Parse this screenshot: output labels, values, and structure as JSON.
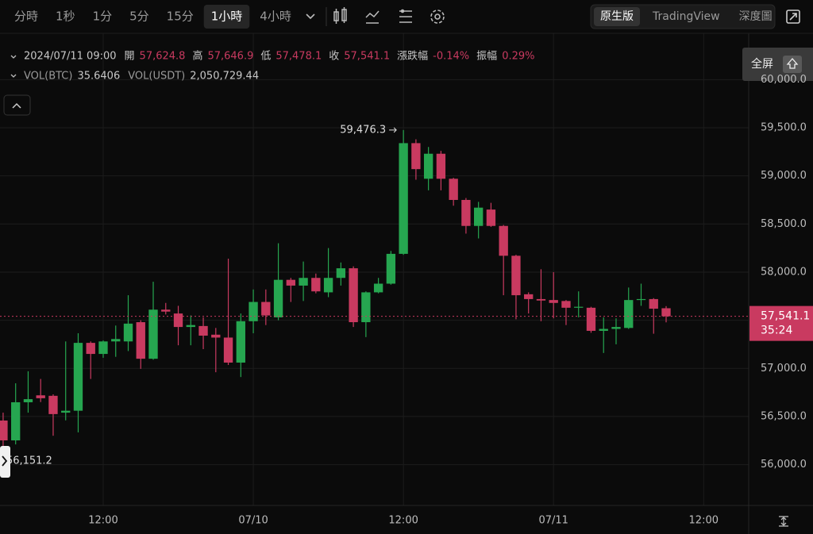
{
  "toolbar": {
    "intervals": [
      "分時",
      "1秒",
      "1分",
      "5分",
      "15分",
      "1小時",
      "4小時"
    ],
    "active": 5,
    "views": [
      "原生版",
      "TradingView",
      "深度圖"
    ],
    "active_view": 0,
    "fullscreen_tooltip": "全屏"
  },
  "legend": {
    "date": "2024/07/11 09:00",
    "items": [
      {
        "name": "開",
        "value": "57,624.8"
      },
      {
        "name": "高",
        "value": "57,646.9"
      },
      {
        "name": "低",
        "value": "57,478.1"
      },
      {
        "name": "收",
        "value": "57,541.1"
      },
      {
        "name": "漲跌幅",
        "value": "-0.14%"
      },
      {
        "name": "振幅",
        "value": "0.29%"
      }
    ],
    "volume": [
      {
        "name": "VOL(BTC)",
        "value": "35.6406"
      },
      {
        "name": "VOL(USDT)",
        "value": "2,050,729.44"
      }
    ]
  },
  "chart_data": {
    "type": "candlestick",
    "categories": [
      null,
      null,
      null,
      null,
      null,
      null,
      null,
      null,
      null,
      null,
      null,
      null,
      null,
      null,
      null,
      null,
      null,
      null,
      null,
      null,
      null,
      null,
      null,
      null,
      null,
      null,
      null,
      null,
      null,
      null,
      null,
      null,
      null,
      null,
      null,
      null,
      null,
      null,
      null,
      null,
      null,
      null,
      null,
      null,
      null,
      null,
      null,
      null,
      null,
      null,
      null,
      null,
      null,
      "2024/07/11 09:00"
    ],
    "open": [
      56458,
      56252,
      56648,
      56720,
      56715,
      56540,
      56560,
      57265,
      57150,
      57280,
      57280,
      57480,
      57100,
      57610,
      57570,
      57430,
      57440,
      57350,
      57320,
      57060,
      57490,
      57690,
      57530,
      57920,
      57860,
      57940,
      57790,
      57940,
      58040,
      57480,
      57790,
      57880,
      58190,
      59340,
      58970,
      59230,
      58970,
      58750,
      58480,
      58650,
      58480,
      58170,
      57770,
      57720,
      57710,
      57700,
      57630,
      57630,
      57390,
      57410,
      57420,
      57710,
      57720,
      57624.8
    ],
    "high": [
      56540,
      56845,
      56970,
      56890,
      56730,
      57280,
      57365,
      57280,
      57290,
      57445,
      57760,
      57500,
      57900,
      57680,
      57650,
      57550,
      57530,
      57420,
      58140,
      57570,
      57820,
      57820,
      58300,
      57940,
      58110,
      57985,
      58250,
      58100,
      58060,
      57800,
      57940,
      58220,
      59476.3,
      59380,
      59300,
      59260,
      58980,
      58770,
      58730,
      58720,
      58490,
      58180,
      57790,
      58030,
      58000,
      57710,
      57800,
      57640,
      57530,
      57520,
      57840,
      57880,
      57730,
      57646.9
    ],
    "low": [
      56151.2,
      56210,
      56540,
      56650,
      56300,
      56460,
      56335,
      56890,
      57110,
      57120,
      57180,
      56995,
      57090,
      57560,
      57240,
      57240,
      57200,
      56960,
      57035,
      56910,
      57365,
      57450,
      57500,
      57690,
      57700,
      57780,
      57740,
      57860,
      57430,
      57325,
      57780,
      57870,
      58180,
      58960,
      58850,
      58850,
      58690,
      58400,
      58350,
      58470,
      57760,
      57510,
      57570,
      57490,
      57520,
      57450,
      57530,
      57370,
      57160,
      57250,
      57410,
      57650,
      57360,
      57478.1
    ],
    "close": [
      56252,
      56648,
      56680,
      56690,
      56525,
      56560,
      57265,
      57150,
      57280,
      57305,
      57465,
      57100,
      57610,
      57590,
      57430,
      57450,
      57340,
      57320,
      57060,
      57490,
      57690,
      57550,
      57920,
      57860,
      57940,
      57800,
      57940,
      58040,
      57480,
      57790,
      57880,
      58190,
      59340,
      59070,
      59230,
      58970,
      58750,
      58480,
      58670,
      58480,
      58170,
      57760,
      57720,
      57705,
      57680,
      57630,
      57640,
      57390,
      57410,
      57430,
      57710,
      57720,
      57620,
      57541.1
    ],
    "up_color": "#26a650",
    "down_color": "#c93a60",
    "xlim": [
      -0.25,
      59.6
    ],
    "xticks": [
      {
        "value": 8,
        "label": "12:00"
      },
      {
        "value": 20,
        "label": "07/10"
      },
      {
        "value": 32,
        "label": "12:00"
      },
      {
        "value": 44,
        "label": "07/11"
      },
      {
        "value": 56,
        "label": "12:00"
      }
    ],
    "ylim": [
      55576,
      60415
    ],
    "yticks": [
      {
        "value": 56000,
        "label": "56,000.0"
      },
      {
        "value": 56500,
        "label": "56,500.0"
      },
      {
        "value": 57000,
        "label": "57,000.0"
      },
      {
        "value": 57500,
        "label": "57,500.0"
      },
      {
        "value": 58000,
        "label": "58,000.0"
      },
      {
        "value": 58500,
        "label": "58,500.0"
      },
      {
        "value": 59000,
        "label": "59,000.0"
      },
      {
        "value": 59500,
        "label": "59,500.0"
      },
      {
        "value": 60000,
        "label": "60,000.0"
      }
    ],
    "grid": true,
    "last_price": {
      "value": 57541.1,
      "label": "57,541.1",
      "countdown": "35:24"
    },
    "annotations": [
      {
        "x": 32,
        "y": 59476.3,
        "label": "59,476.3"
      },
      {
        "x": 0,
        "y": 56151.2,
        "label": "56,151.2"
      }
    ]
  }
}
